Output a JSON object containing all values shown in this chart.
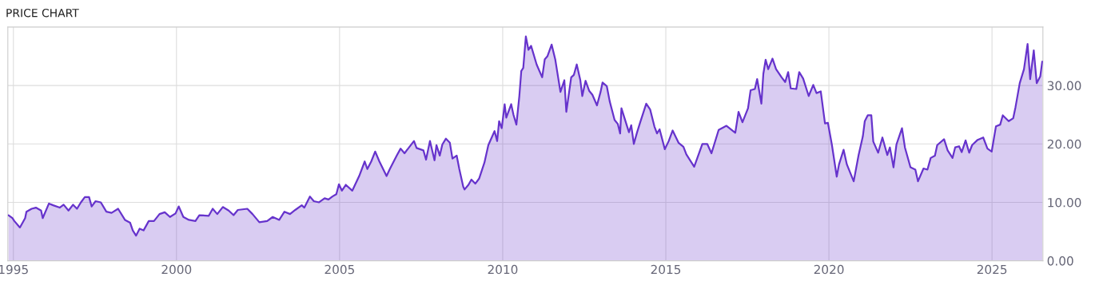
{
  "chart_data": {
    "type": "area",
    "title": "PRICE CHART",
    "xlim": [
      1994.83,
      2026.56
    ],
    "xticks": [
      1995,
      2000,
      2005,
      2010,
      2015,
      2020,
      2025
    ],
    "ylim": [
      0,
      40
    ],
    "yticks": [
      {
        "value": 0,
        "label": "0.00"
      },
      {
        "value": 10,
        "label": "10.00"
      },
      {
        "value": 20,
        "label": "20.00"
      },
      {
        "value": 30,
        "label": "30.00"
      }
    ],
    "grid": true,
    "line_style": "solid",
    "series": [
      {
        "color": "#6633cc",
        "x": [
          1994.85,
          1994.97,
          1995.03,
          1995.2,
          1995.36,
          1995.4,
          1995.56,
          1995.69,
          1995.85,
          1995.9,
          1996.09,
          1996.22,
          1996.42,
          1996.54,
          1996.69,
          1996.83,
          1996.95,
          1997.07,
          1997.19,
          1997.32,
          1997.4,
          1997.52,
          1997.68,
          1997.85,
          1998.01,
          1998.21,
          1998.42,
          1998.58,
          1998.66,
          1998.76,
          1998.87,
          1998.99,
          1999.15,
          1999.31,
          1999.48,
          1999.64,
          1999.8,
          1999.97,
          2000.07,
          2000.21,
          2000.38,
          2000.58,
          2000.7,
          2000.99,
          2001.11,
          2001.25,
          2001.42,
          2001.6,
          2001.75,
          2001.88,
          2002.17,
          2002.33,
          2002.54,
          2002.78,
          2002.95,
          2003.15,
          2003.31,
          2003.48,
          2003.64,
          2003.84,
          2003.92,
          2004.09,
          2004.21,
          2004.37,
          2004.54,
          2004.66,
          2004.78,
          2004.9,
          2004.98,
          2005.07,
          2005.19,
          2005.39,
          2005.6,
          2005.77,
          2005.85,
          2005.97,
          2006.09,
          2006.22,
          2006.44,
          2006.54,
          2006.75,
          2006.87,
          2006.99,
          2007.28,
          2007.36,
          2007.57,
          2007.65,
          2007.77,
          2007.91,
          2007.97,
          2008.07,
          2008.15,
          2008.26,
          2008.38,
          2008.46,
          2008.59,
          2008.67,
          2008.79,
          2008.83,
          2008.95,
          2009.04,
          2009.16,
          2009.28,
          2009.44,
          2009.56,
          2009.75,
          2009.83,
          2009.89,
          2009.97,
          2010.06,
          2010.11,
          2010.26,
          2010.33,
          2010.42,
          2010.51,
          2010.57,
          2010.63,
          2010.71,
          2010.79,
          2010.87,
          2011.04,
          2011.21,
          2011.29,
          2011.37,
          2011.5,
          2011.61,
          2011.77,
          2011.89,
          2011.95,
          2012.1,
          2012.18,
          2012.27,
          2012.38,
          2012.44,
          2012.54,
          2012.65,
          2012.75,
          2012.89,
          2013.0,
          2013.06,
          2013.19,
          2013.28,
          2013.43,
          2013.53,
          2013.6,
          2013.64,
          2013.87,
          2013.94,
          2014.02,
          2014.12,
          2014.21,
          2014.4,
          2014.52,
          2014.65,
          2014.73,
          2014.81,
          2014.97,
          2015.09,
          2015.21,
          2015.39,
          2015.54,
          2015.63,
          2015.87,
          2016.12,
          2016.27,
          2016.4,
          2016.62,
          2016.86,
          2017.13,
          2017.23,
          2017.35,
          2017.52,
          2017.6,
          2017.73,
          2017.8,
          2017.93,
          2017.99,
          2018.06,
          2018.14,
          2018.27,
          2018.38,
          2018.55,
          2018.66,
          2018.75,
          2018.83,
          2019.0,
          2019.09,
          2019.21,
          2019.38,
          2019.52,
          2019.62,
          2019.75,
          2019.88,
          2019.97,
          2020.09,
          2020.24,
          2020.31,
          2020.45,
          2020.55,
          2020.76,
          2020.91,
          2021.04,
          2021.1,
          2021.19,
          2021.3,
          2021.36,
          2021.51,
          2021.64,
          2021.79,
          2021.87,
          2021.98,
          2022.07,
          2022.24,
          2022.33,
          2022.5,
          2022.65,
          2022.73,
          2022.9,
          2023.02,
          2023.12,
          2023.25,
          2023.32,
          2023.53,
          2023.64,
          2023.79,
          2023.87,
          2023.99,
          2024.07,
          2024.19,
          2024.3,
          2024.39,
          2024.56,
          2024.73,
          2024.86,
          2024.99,
          2025.12,
          2025.25,
          2025.33,
          2025.51,
          2025.65,
          2025.72,
          2025.85,
          2025.98,
          2026.09,
          2026.17,
          2026.28,
          2026.37,
          2026.48,
          2026.54
        ],
        "values": [
          7.8,
          7.3,
          6.8,
          5.7,
          7.3,
          8.4,
          8.9,
          9.1,
          8.6,
          7.3,
          9.8,
          9.5,
          9.1,
          9.6,
          8.6,
          9.6,
          8.9,
          10.0,
          10.9,
          10.9,
          9.3,
          10.2,
          10.0,
          8.4,
          8.2,
          8.9,
          7.0,
          6.5,
          5.2,
          4.3,
          5.5,
          5.2,
          6.8,
          6.8,
          8.0,
          8.3,
          7.5,
          8.1,
          9.3,
          7.5,
          7.0,
          6.8,
          7.8,
          7.7,
          8.9,
          8.0,
          9.2,
          8.6,
          7.8,
          8.7,
          8.9,
          8.0,
          6.6,
          6.8,
          7.5,
          7.0,
          8.4,
          8.0,
          8.7,
          9.5,
          9.1,
          11.0,
          10.2,
          10.0,
          10.7,
          10.5,
          11.0,
          11.4,
          13.1,
          12.0,
          13.0,
          12.0,
          14.5,
          17.0,
          15.7,
          17.0,
          18.7,
          17.0,
          14.5,
          15.7,
          18.0,
          19.2,
          18.4,
          20.5,
          19.3,
          18.9,
          17.3,
          20.5,
          17.2,
          19.8,
          18.0,
          19.9,
          20.9,
          20.2,
          17.5,
          18.0,
          15.7,
          12.7,
          12.2,
          13.0,
          13.9,
          13.2,
          14.1,
          16.8,
          19.8,
          22.2,
          20.5,
          23.9,
          22.7,
          26.8,
          24.5,
          26.8,
          25.0,
          23.3,
          28.2,
          32.5,
          33.0,
          38.4,
          36.1,
          36.8,
          33.6,
          31.4,
          34.5,
          35.0,
          37.0,
          34.5,
          28.9,
          30.9,
          25.5,
          31.4,
          31.8,
          33.6,
          30.9,
          28.2,
          30.8,
          29.1,
          28.4,
          26.6,
          28.9,
          30.5,
          29.9,
          27.3,
          24.1,
          23.4,
          21.8,
          26.1,
          22.0,
          23.2,
          20.0,
          22.0,
          23.6,
          26.9,
          25.9,
          23.0,
          21.8,
          22.5,
          19.1,
          20.5,
          22.3,
          20.2,
          19.5,
          18.2,
          16.1,
          20.0,
          20.0,
          18.4,
          22.4,
          23.1,
          21.9,
          25.5,
          23.7,
          26.1,
          29.2,
          29.4,
          31.1,
          26.9,
          32.0,
          34.4,
          32.8,
          34.6,
          32.8,
          31.4,
          30.6,
          32.3,
          29.5,
          29.4,
          32.3,
          31.2,
          28.2,
          30.1,
          28.7,
          29.0,
          23.5,
          23.6,
          19.9,
          14.4,
          16.5,
          19.0,
          16.5,
          13.6,
          18.1,
          21.3,
          23.9,
          24.9,
          24.9,
          20.4,
          18.5,
          21.1,
          18.1,
          19.4,
          16.0,
          19.9,
          22.7,
          19.4,
          16.0,
          15.6,
          13.6,
          15.8,
          15.6,
          17.6,
          18.0,
          19.8,
          20.8,
          18.9,
          17.6,
          19.4,
          19.6,
          18.6,
          20.6,
          18.5,
          19.8,
          20.7,
          21.1,
          19.2,
          18.7,
          23.0,
          23.3,
          24.9,
          23.9,
          24.4,
          26.3,
          30.4,
          32.8,
          37.1,
          31.1,
          36.0,
          30.4,
          31.6,
          34.1
        ]
      }
    ]
  }
}
